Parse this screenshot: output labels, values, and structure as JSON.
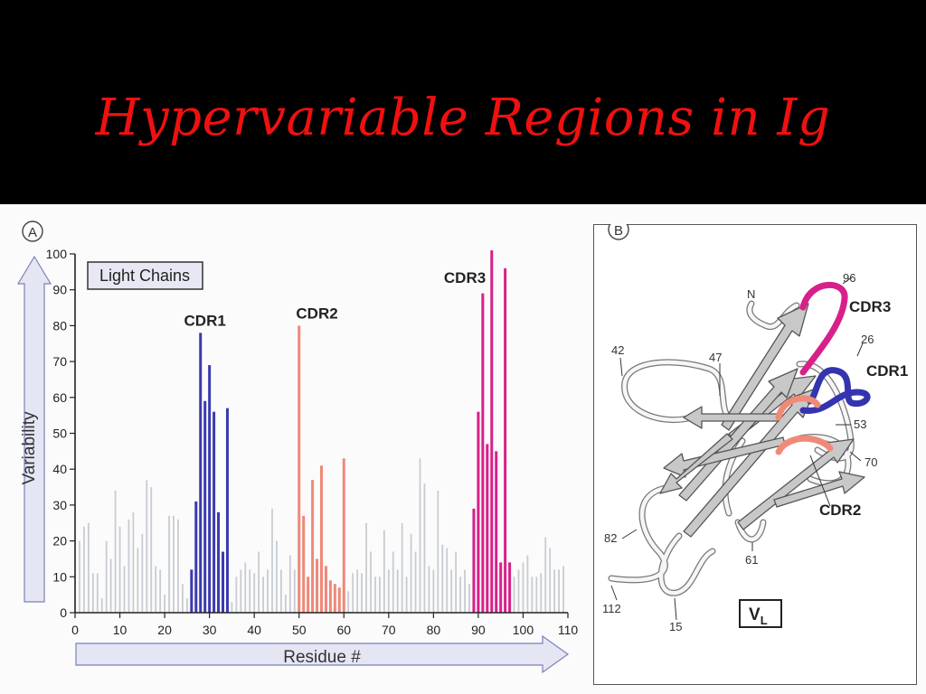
{
  "slide": {
    "title": "Hypervariable Regions in Ig"
  },
  "chart_data": {
    "type": "bar",
    "panel_label": "A",
    "legend_box": "Light Chains",
    "xlabel": "Residue #",
    "ylabel": "Variability",
    "xlim": [
      0,
      110
    ],
    "ylim": [
      0,
      100
    ],
    "x_ticks": [
      0,
      10,
      20,
      30,
      40,
      50,
      60,
      70,
      80,
      90,
      100,
      110
    ],
    "y_ticks": [
      0,
      10,
      20,
      30,
      40,
      50,
      60,
      70,
      80,
      90,
      100
    ],
    "colors": {
      "framework": "#c8ccd2",
      "CDR1": "#3a3ab0",
      "CDR2": "#f08878",
      "CDR3": "#d8208a",
      "axis": "#222222",
      "arrow_fill": "#e4e6f4"
    },
    "annotations": [
      {
        "text": "CDR1",
        "x": 29,
        "y": 80
      },
      {
        "text": "CDR2",
        "x": 54,
        "y": 82
      },
      {
        "text": "CDR3",
        "x": 87,
        "y": 92
      }
    ],
    "series": [
      {
        "name": "CDR1",
        "x": [
          26,
          27,
          28,
          29,
          30,
          31,
          32,
          33,
          34
        ],
        "values": [
          12,
          31,
          78,
          59,
          69,
          56,
          28,
          17,
          57
        ]
      },
      {
        "name": "CDR2",
        "x": [
          50,
          51,
          52,
          53,
          54,
          55,
          56,
          57,
          58,
          59,
          60
        ],
        "values": [
          80,
          27,
          10,
          37,
          15,
          41,
          13,
          9,
          8,
          7,
          43
        ]
      },
      {
        "name": "CDR3",
        "x": [
          89,
          90,
          91,
          92,
          93,
          94,
          95,
          96,
          97
        ],
        "values": [
          29,
          56,
          89,
          47,
          101,
          45,
          14,
          96,
          14
        ]
      },
      {
        "name": "framework",
        "x": [
          1,
          2,
          3,
          4,
          5,
          6,
          7,
          8,
          9,
          10,
          11,
          12,
          13,
          14,
          15,
          16,
          17,
          18,
          19,
          20,
          21,
          22,
          23,
          24,
          25,
          35,
          36,
          37,
          38,
          39,
          40,
          41,
          42,
          43,
          44,
          45,
          46,
          47,
          48,
          49,
          61,
          62,
          63,
          64,
          65,
          66,
          67,
          68,
          69,
          70,
          71,
          72,
          73,
          74,
          75,
          76,
          77,
          78,
          79,
          80,
          81,
          82,
          83,
          84,
          85,
          86,
          87,
          88,
          98,
          99,
          100,
          101,
          102,
          103,
          104,
          105,
          106,
          107,
          108,
          109
        ],
        "values": [
          20,
          24,
          25,
          11,
          11,
          4,
          20,
          15,
          34,
          24,
          13,
          26,
          28,
          18,
          22,
          37,
          35,
          13,
          12,
          5,
          27,
          27,
          26,
          8,
          4,
          3,
          10,
          12,
          14,
          12,
          11,
          17,
          10,
          12,
          29,
          20,
          12,
          5,
          16,
          12,
          6,
          11,
          12,
          11,
          25,
          17,
          10,
          10,
          23,
          12,
          17,
          12,
          25,
          10,
          22,
          17,
          43,
          36,
          13,
          12,
          34,
          19,
          18,
          12,
          17,
          10,
          12,
          8,
          10,
          12,
          14,
          16,
          10,
          10,
          11,
          21,
          18,
          12,
          12,
          13
        ]
      }
    ]
  },
  "structure_panel": {
    "panel_label": "B",
    "domain_label": "V",
    "domain_subscript": "L",
    "cdr_labels": [
      "CDR3",
      "CDR1",
      "CDR2"
    ],
    "residue_labels": [
      "N",
      "96",
      "26",
      "42",
      "47",
      "53",
      "70",
      "82",
      "61",
      "112",
      "15"
    ],
    "colors": {
      "CDR1": "#3434b0",
      "CDR2": "#f08a78",
      "CDR3": "#d8208a",
      "strand": "#c8c8c8",
      "loop": "#f4f4f4"
    }
  }
}
